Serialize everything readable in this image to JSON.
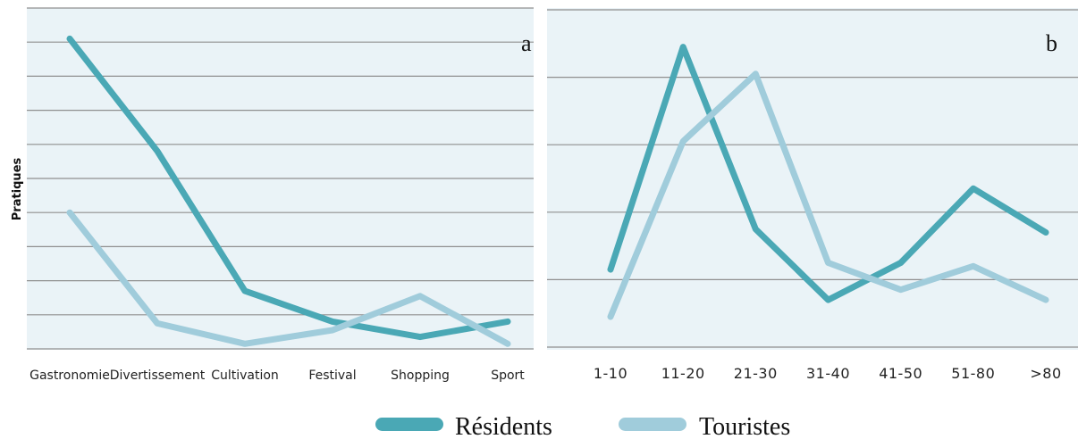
{
  "colors": {
    "residents": "#4aa8b5",
    "touristes": "#a0ccdb",
    "panel_bg": "#eaf3f7",
    "grid": "#8f8f8f"
  },
  "legend": {
    "residents_label": "Résidents",
    "touristes_label": "Touristes"
  },
  "chart_data": [
    {
      "type": "line",
      "panel_label": "a",
      "ylabel": "Pratiques",
      "xlabel": "",
      "categories": [
        "Gastronomie",
        "Divertissement",
        "Cultivation",
        "Festival",
        "Shopping",
        "Sport"
      ],
      "ylim": [
        0,
        10
      ],
      "grid": true,
      "series": [
        {
          "name": "Résidents",
          "values": [
            9.1,
            5.8,
            1.7,
            0.8,
            0.35,
            0.8
          ]
        },
        {
          "name": "Touristes",
          "values": [
            4.0,
            0.75,
            0.15,
            0.55,
            1.55,
            0.15
          ]
        }
      ]
    },
    {
      "type": "line",
      "panel_label": "b",
      "xlabel": "",
      "ylabel": "",
      "categories": [
        "1-10",
        "11-20",
        "21-30",
        "31-40",
        "41-50",
        "51-80",
        ">80"
      ],
      "ylim": [
        0,
        5
      ],
      "grid": true,
      "series": [
        {
          "name": "Résidents",
          "values": [
            1.15,
            4.45,
            1.75,
            0.7,
            1.25,
            2.35,
            1.7
          ]
        },
        {
          "name": "Touristes",
          "values": [
            0.45,
            3.05,
            4.05,
            1.25,
            0.85,
            1.2,
            0.7
          ]
        }
      ]
    }
  ]
}
